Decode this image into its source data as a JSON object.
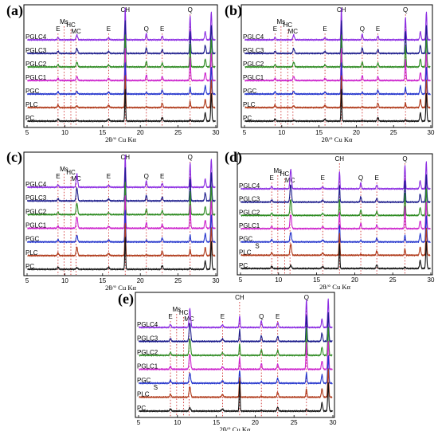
{
  "chart_data": [
    {
      "panel": "(a)",
      "type": "line",
      "xlabel": "2θ/° Cu Kα",
      "xlim": [
        5,
        30
      ],
      "xticks": [
        5,
        10,
        15,
        20,
        25,
        30
      ],
      "phase_labels": [
        {
          "label": "E",
          "x": 9.1
        },
        {
          "label": "Ms",
          "x": 9.9
        },
        {
          "label": "HC",
          "x": 10.8
        },
        {
          "label": "MC",
          "x": 11.5
        },
        {
          "label": "E",
          "x": 15.8
        },
        {
          "label": "CH",
          "x": 18.0
        },
        {
          "label": "Q",
          "x": 20.8
        },
        {
          "label": "E",
          "x": 22.9
        },
        {
          "label": "Q",
          "x": 26.6
        }
      ],
      "series": [
        {
          "name": "PGLC4",
          "color": "#8b2be2",
          "peaks": {
            "CH": 1.0,
            "Q2": 0.75,
            "Q1": 0.2,
            "MC": 0.15,
            "E": 0.12
          }
        },
        {
          "name": "PGLC3",
          "color": "#1c1c8c",
          "peaks": {
            "CH": 1.0,
            "Q2": 0.7,
            "Q1": 0.18,
            "MC": 0.15,
            "E": 0.12
          }
        },
        {
          "name": "PGLC2",
          "color": "#2e8b22",
          "peaks": {
            "CH": 1.0,
            "Q2": 0.7,
            "Q1": 0.18,
            "MC": 0.15,
            "E": 0.12
          }
        },
        {
          "name": "PGLC1",
          "color": "#cc22cc",
          "peaks": {
            "CH": 1.0,
            "Q2": 0.7,
            "Q1": 0.18,
            "MC": 0.12,
            "E": 0.12
          }
        },
        {
          "name": "PGC",
          "color": "#2233cc",
          "peaks": {
            "CH": 1.0,
            "Q2": 0.2,
            "Q1": 0.05,
            "MC": 0.08,
            "E": 0.12
          }
        },
        {
          "name": "PLC",
          "color": "#b03a1a",
          "peaks": {
            "CH": 1.0,
            "Q2": 0.2,
            "Q1": 0.03,
            "MC": 0.05,
            "E": 0.14
          }
        },
        {
          "name": "PC",
          "color": "#111111",
          "peaks": {
            "CH": 1.0,
            "Q2": 0.05,
            "Q1": 0.02,
            "MC": 0.02,
            "E": 0.12
          }
        }
      ]
    },
    {
      "panel": "(b)",
      "type": "line",
      "xlabel": "2θ/° Cu Kα",
      "xlim": [
        5,
        30
      ],
      "xticks": [
        5,
        10,
        15,
        20,
        25,
        30
      ],
      "phase_labels": [
        {
          "label": "E",
          "x": 9.1
        },
        {
          "label": "Ms",
          "x": 9.9
        },
        {
          "label": "HC",
          "x": 10.8
        },
        {
          "label": "MC",
          "x": 11.5
        },
        {
          "label": "E",
          "x": 15.8
        },
        {
          "label": "CH",
          "x": 18.0
        },
        {
          "label": "Q",
          "x": 20.8
        },
        {
          "label": "E",
          "x": 22.9
        },
        {
          "label": "Q",
          "x": 26.6
        }
      ],
      "series": [
        {
          "name": "PGLC4",
          "color": "#8b2be2",
          "peaks": {
            "CH": 1.0,
            "Q2": 0.7,
            "Q1": 0.18,
            "MC": 0.15,
            "E": 0.12
          }
        },
        {
          "name": "PGLC3",
          "color": "#1c1c8c",
          "peaks": {
            "CH": 1.0,
            "Q2": 0.7,
            "Q1": 0.18,
            "MC": 0.15,
            "E": 0.12
          }
        },
        {
          "name": "PGLC2",
          "color": "#2e8b22",
          "peaks": {
            "CH": 1.0,
            "Q2": 0.65,
            "Q1": 0.16,
            "MC": 0.15,
            "E": 0.12
          }
        },
        {
          "name": "PGLC1",
          "color": "#cc22cc",
          "peaks": {
            "CH": 1.0,
            "Q2": 0.65,
            "Q1": 0.16,
            "MC": 0.12,
            "E": 0.12
          }
        },
        {
          "name": "PGC",
          "color": "#2233cc",
          "peaks": {
            "CH": 1.0,
            "Q2": 0.2,
            "Q1": 0.05,
            "MC": 0.08,
            "E": 0.12
          }
        },
        {
          "name": "PLC",
          "color": "#b03a1a",
          "peaks": {
            "CH": 1.0,
            "Q2": 0.15,
            "Q1": 0.03,
            "MC": 0.05,
            "E": 0.14
          }
        },
        {
          "name": "PC",
          "color": "#111111",
          "peaks": {
            "CH": 1.0,
            "Q2": 0.05,
            "Q1": 0.02,
            "MC": 0.02,
            "E": 0.12
          }
        }
      ]
    },
    {
      "panel": "(c)",
      "type": "line",
      "xlabel": "2θ/° Cu Kα",
      "xlim": [
        5,
        30
      ],
      "xticks": [
        5,
        10,
        15,
        20,
        25,
        30
      ],
      "phase_labels": [
        {
          "label": "E",
          "x": 9.1
        },
        {
          "label": "Ms",
          "x": 9.9
        },
        {
          "label": "HC",
          "x": 10.8
        },
        {
          "label": "MC",
          "x": 11.5
        },
        {
          "label": "E",
          "x": 15.8
        },
        {
          "label": "CH",
          "x": 18.0
        },
        {
          "label": "Q",
          "x": 20.8
        },
        {
          "label": "E",
          "x": 22.9
        },
        {
          "label": "Q",
          "x": 26.6
        }
      ],
      "series": [
        {
          "name": "PGLC4",
          "color": "#8b2be2",
          "peaks": {
            "CH": 1.0,
            "Q2": 0.75,
            "Q1": 0.2,
            "MC": 0.4,
            "E": 0.12
          }
        },
        {
          "name": "PGLC3",
          "color": "#1c1c8c",
          "peaks": {
            "CH": 1.0,
            "Q2": 0.7,
            "Q1": 0.18,
            "MC": 0.4,
            "E": 0.12
          }
        },
        {
          "name": "PGLC2",
          "color": "#2e8b22",
          "peaks": {
            "CH": 1.0,
            "Q2": 0.7,
            "Q1": 0.18,
            "MC": 0.35,
            "E": 0.12
          }
        },
        {
          "name": "PGLC1",
          "color": "#cc22cc",
          "peaks": {
            "CH": 1.0,
            "Q2": 0.7,
            "Q1": 0.18,
            "MC": 0.35,
            "E": 0.12
          }
        },
        {
          "name": "PGC",
          "color": "#2233cc",
          "peaks": {
            "CH": 1.0,
            "Q2": 0.2,
            "Q1": 0.05,
            "MC": 0.2,
            "E": 0.12
          }
        },
        {
          "name": "PLC",
          "color": "#b03a1a",
          "peaks": {
            "CH": 1.0,
            "Q2": 0.2,
            "Q1": 0.03,
            "MC": 0.25,
            "E": 0.14
          }
        },
        {
          "name": "PC",
          "color": "#111111",
          "peaks": {
            "CH": 1.0,
            "Q2": 0.05,
            "Q1": 0.02,
            "MC": 0.05,
            "E": 0.12
          }
        }
      ]
    },
    {
      "panel": "(d)",
      "type": "line",
      "xlabel": "2θ/° Cu Kα",
      "xlim": [
        5,
        30
      ],
      "xticks": [
        5,
        10,
        15,
        20,
        25,
        30
      ],
      "phase_labels": [
        {
          "label": "S",
          "x": 7.2
        },
        {
          "label": "E",
          "x": 9.1
        },
        {
          "label": "Ms",
          "x": 9.9
        },
        {
          "label": "HC",
          "x": 10.8
        },
        {
          "label": "MC",
          "x": 11.5
        },
        {
          "label": "E",
          "x": 15.8
        },
        {
          "label": "CH",
          "x": 18.0
        },
        {
          "label": "Q",
          "x": 20.8
        },
        {
          "label": "E",
          "x": 22.9
        },
        {
          "label": "Q",
          "x": 26.6
        }
      ],
      "series": [
        {
          "name": "PGLC4",
          "color": "#8b2be2",
          "peaks": {
            "CH": 0.55,
            "Q2": 0.75,
            "Q1": 0.2,
            "MC": 0.6,
            "E": 0.12
          }
        },
        {
          "name": "PGLC3",
          "color": "#1c1c8c",
          "peaks": {
            "CH": 0.5,
            "Q2": 0.7,
            "Q1": 0.18,
            "MC": 0.55,
            "E": 0.12
          }
        },
        {
          "name": "PGLC2",
          "color": "#2e8b22",
          "peaks": {
            "CH": 0.5,
            "Q2": 0.7,
            "Q1": 0.18,
            "MC": 0.5,
            "E": 0.12
          }
        },
        {
          "name": "PGLC1",
          "color": "#cc22cc",
          "peaks": {
            "CH": 0.5,
            "Q2": 0.7,
            "Q1": 0.18,
            "MC": 0.45,
            "E": 0.12
          }
        },
        {
          "name": "PGC",
          "color": "#2233cc",
          "peaks": {
            "CH": 0.55,
            "Q2": 0.2,
            "Q1": 0.05,
            "MC": 0.3,
            "E": 0.12
          }
        },
        {
          "name": "PLC",
          "color": "#b03a1a",
          "peaks": {
            "CH": 0.7,
            "Q2": 0.2,
            "Q1": 0.03,
            "MC": 0.35,
            "E": 0.14
          }
        },
        {
          "name": "PC",
          "color": "#111111",
          "peaks": {
            "CH": 0.8,
            "Q2": 0.05,
            "Q1": 0.02,
            "MC": 0.1,
            "E": 0.12
          }
        }
      ]
    },
    {
      "panel": "(e)",
      "type": "line",
      "xlabel": "2θ/° Cu Kα",
      "xlim": [
        5,
        30
      ],
      "xticks": [
        5,
        10,
        15,
        20,
        25,
        30
      ],
      "phase_labels": [
        {
          "label": "S",
          "x": 7.2
        },
        {
          "label": "E",
          "x": 9.1
        },
        {
          "label": "Ms",
          "x": 9.9
        },
        {
          "label": "HC",
          "x": 10.8
        },
        {
          "label": "MC",
          "x": 11.5
        },
        {
          "label": "E",
          "x": 15.8
        },
        {
          "label": "CH",
          "x": 18.0
        },
        {
          "label": "Q",
          "x": 20.8
        },
        {
          "label": "E",
          "x": 22.9
        },
        {
          "label": "Q",
          "x": 26.6
        }
      ],
      "series": [
        {
          "name": "PGLC4",
          "color": "#8b2be2",
          "peaks": {
            "CH": 0.35,
            "Q2": 0.85,
            "Q1": 0.2,
            "MC": 0.55,
            "E": 0.15
          }
        },
        {
          "name": "PGLC3",
          "color": "#1c1c8c",
          "peaks": {
            "CH": 0.35,
            "Q2": 0.8,
            "Q1": 0.18,
            "MC": 0.55,
            "E": 0.15
          }
        },
        {
          "name": "PGLC2",
          "color": "#2e8b22",
          "peaks": {
            "CH": 0.35,
            "Q2": 0.8,
            "Q1": 0.18,
            "MC": 0.5,
            "E": 0.15
          }
        },
        {
          "name": "PGLC1",
          "color": "#cc22cc",
          "peaks": {
            "CH": 0.35,
            "Q2": 0.8,
            "Q1": 0.18,
            "MC": 0.45,
            "E": 0.15
          }
        },
        {
          "name": "PGC",
          "color": "#2233cc",
          "peaks": {
            "CH": 0.4,
            "Q2": 0.3,
            "Q1": 0.05,
            "MC": 0.3,
            "E": 0.15
          }
        },
        {
          "name": "PLC",
          "color": "#b03a1a",
          "peaks": {
            "CH": 0.6,
            "Q2": 0.25,
            "Q1": 0.03,
            "MC": 0.3,
            "E": 0.15
          }
        },
        {
          "name": "PC",
          "color": "#111111",
          "peaks": {
            "CH": 0.9,
            "Q2": 0.05,
            "Q1": 0.02,
            "MC": 0.1,
            "E": 0.12
          }
        }
      ]
    }
  ]
}
